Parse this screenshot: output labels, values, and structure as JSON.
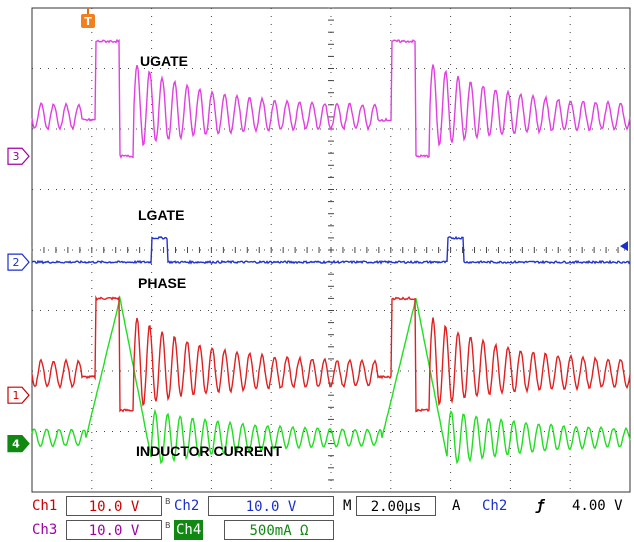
{
  "chart_data": {
    "type": "line",
    "title": "",
    "xlabel": "",
    "ylabel": "",
    "grid": true,
    "divisions": {
      "x": 10,
      "y": 8
    },
    "trigger_marker": "T",
    "series": [
      {
        "name": "UGATE",
        "channel": "3",
        "color": "#e040e0",
        "ground_div": 5.55,
        "values_div": {
          "high": 7.45,
          "low": 5.55,
          "ring_start": 6.4,
          "ring_end": 6.2
        }
      },
      {
        "name": "LGATE",
        "channel": "2",
        "color": "#2233cc",
        "ground_div": 3.8,
        "values_div": {
          "high": 4.2,
          "low": 3.8
        }
      },
      {
        "name": "PHASE",
        "channel": "1",
        "color": "#e02020",
        "ground_div": 1.6,
        "values_div": {
          "high": 3.2,
          "low": 1.35,
          "ring_start": 2.15,
          "ring_end": 1.95
        }
      },
      {
        "name": "INDUCTOR CURRENT",
        "channel": "4",
        "color": "#22dd22",
        "ground_div": 0.8,
        "values_div": {
          "peak": 3.2,
          "valley": 0.5,
          "ring_mid": 0.9
        }
      }
    ]
  },
  "status": {
    "ch1_label": "Ch1",
    "ch1_scale": "10.0 V",
    "ch2_label": "Ch2",
    "ch2_scale": "10.0 V",
    "ch3_label": "Ch3",
    "ch3_scale": "10.0 V",
    "ch4_label": "Ch4",
    "ch4_scale": "500mA Ω",
    "bw_mark": "B",
    "time_label": "M",
    "time_scale": "2.00µs",
    "trig_mode": "A",
    "trig_source": "Ch2",
    "trig_slope": "ƒ",
    "trig_level": "4.00 V"
  },
  "colors": {
    "ch1": "#cc0000",
    "ch2": "#1a2fcc",
    "ch3": "#a000a0",
    "ch4_bg": "#118811",
    "grid": "#333333"
  }
}
